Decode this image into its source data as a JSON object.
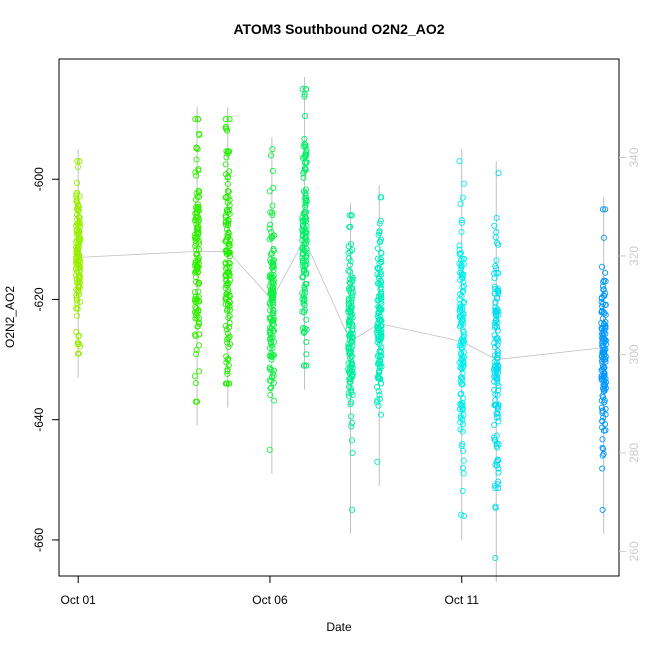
{
  "chart_data": {
    "type": "scatter",
    "title": "ATOM3 Southbound O2N2_AO2",
    "xlabel": "Date",
    "ylabel": "O2N2_AO2",
    "x_ticks": [
      "Oct 01",
      "Oct 06",
      "Oct 11"
    ],
    "x_tick_values": [
      1.0,
      6.0,
      11.0
    ],
    "xlim": [
      0.5,
      15.1
    ],
    "y_ticks": [
      -600,
      -620,
      -640,
      -660
    ],
    "ylim": [
      -666,
      -580
    ],
    "y2_ticks": [
      260,
      280,
      300,
      320,
      340
    ],
    "y2lim": [
      255,
      360
    ],
    "y2_color": "#cccccc",
    "line_color": "#c0c0c0",
    "grid": false,
    "clusters": [
      {
        "x": 1.0,
        "y_center": -613,
        "y_spread": 7,
        "y_min": -629,
        "y_max": -597,
        "color": "#99ee00"
      },
      {
        "x": 4.1,
        "y_center": -612,
        "y_spread": 9,
        "y_min": -637,
        "y_max": -590,
        "color": "#33ee00"
      },
      {
        "x": 4.9,
        "y_center": -612,
        "y_spread": 10,
        "y_min": -634,
        "y_max": -590,
        "color": "#22ee00"
      },
      {
        "x": 6.05,
        "y_center": -620,
        "y_spread": 8,
        "y_min": -645,
        "y_max": -595,
        "color": "#11ee44"
      },
      {
        "x": 6.9,
        "y_center": -610,
        "y_spread": 10,
        "y_min": -631,
        "y_max": -585,
        "color": "#00ee66"
      },
      {
        "x": 8.1,
        "y_center": -627,
        "y_spread": 8,
        "y_min": -655,
        "y_max": -606,
        "color": "#00ee99"
      },
      {
        "x": 8.85,
        "y_center": -624,
        "y_spread": 8,
        "y_min": -647,
        "y_max": -603,
        "color": "#00eebb"
      },
      {
        "x": 11.0,
        "y_center": -627,
        "y_spread": 11,
        "y_min": -656,
        "y_max": -597,
        "color": "#00eeee"
      },
      {
        "x": 11.9,
        "y_center": -630,
        "y_spread": 11,
        "y_min": -663,
        "y_max": -599,
        "color": "#00ddee"
      },
      {
        "x": 14.7,
        "y_center": -628,
        "y_spread": 8,
        "y_min": -655,
        "y_max": -605,
        "color": "#0099ff"
      }
    ]
  }
}
